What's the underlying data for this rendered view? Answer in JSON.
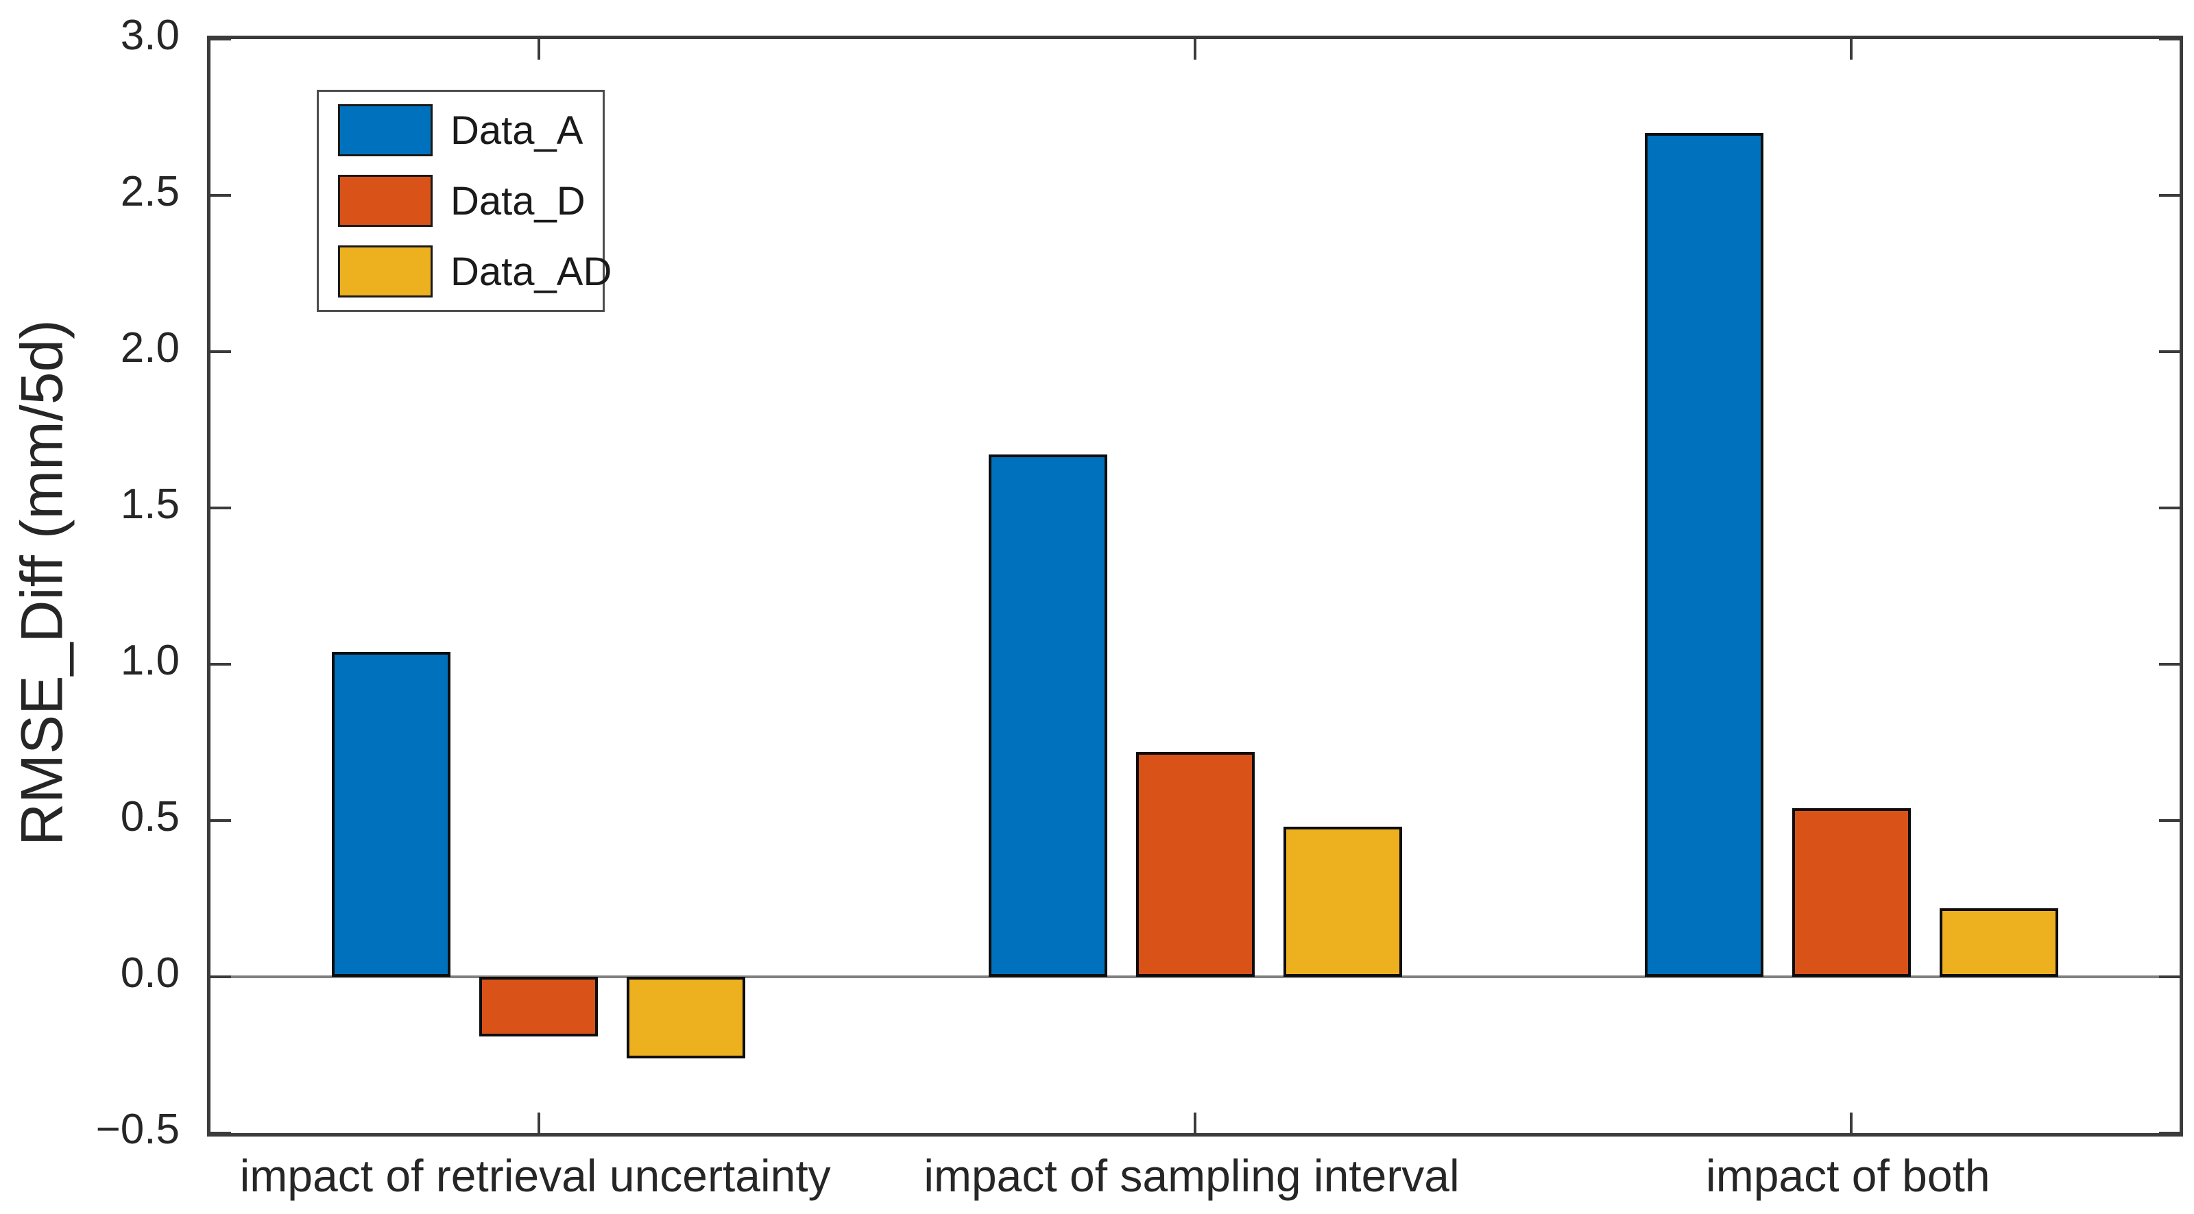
{
  "chart_data": {
    "type": "bar",
    "title": "",
    "xlabel": "",
    "ylabel": "RMSE_Diff (mm/5d)",
    "ylim": [
      -0.5,
      3.0
    ],
    "ytick_step": 0.5,
    "grid": false,
    "legend_position": "top-left-inside",
    "background_color": "#FFFFFF",
    "axis_color": "#3B3B3B",
    "zero_line_color": "#808080",
    "bar_edge_color": "#0D0D0D",
    "categories": [
      "impact of retrieval uncertainty",
      "impact of sampling interval",
      "impact of both"
    ],
    "series": [
      {
        "name": "Data_A",
        "color": "#0072BD",
        "values": [
          1.04,
          1.67,
          2.7
        ]
      },
      {
        "name": "Data_D",
        "color": "#D95319",
        "values": [
          -0.19,
          0.72,
          0.54
        ]
      },
      {
        "name": "Data_AD",
        "color": "#EDB120",
        "values": [
          -0.26,
          0.48,
          0.22
        ]
      }
    ]
  }
}
